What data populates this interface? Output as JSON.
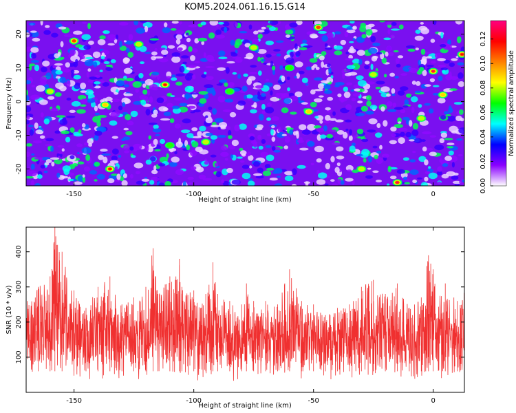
{
  "chart_data": [
    {
      "type": "heatmap",
      "title": "KOM5.2024.061.16.15.G14",
      "xlabel": "Height of straight line (km)",
      "ylabel": "Frequency (Hz)",
      "xlim": [
        -170,
        13
      ],
      "ylim": [
        -25,
        24
      ],
      "x_ticks": [
        -150,
        -100,
        -50,
        0
      ],
      "x_tick_labels": [
        "-150",
        "-100",
        "-50",
        "0"
      ],
      "y_ticks": [
        -20,
        -10,
        0,
        10,
        20
      ],
      "y_tick_labels": [
        "-20",
        "-10",
        "0",
        "10",
        "20"
      ],
      "colorbar": {
        "label": "Normalized spectral amplitude",
        "range": [
          0,
          0.135
        ],
        "ticks": [
          0.0,
          0.02,
          0.04,
          0.06,
          0.08,
          0.1,
          0.12
        ],
        "tick_labels": [
          "0.00",
          "0.02",
          "0.04",
          "0.06",
          "0.08",
          "0.10",
          "0.12"
        ],
        "colormap": [
          "#ffffff",
          "#8a00ff",
          "#0000ff",
          "#00ffff",
          "#00ff00",
          "#ffff00",
          "#ff8000",
          "#ff0000",
          "#ff0080"
        ]
      },
      "peaks": [
        {
          "x": -135,
          "y": -20,
          "value": 0.12
        },
        {
          "x": -15,
          "y": -24,
          "value": 0.13
        },
        {
          "x": 0,
          "y": 9,
          "value": 0.13
        },
        {
          "x": -112,
          "y": 5,
          "value": 0.12
        },
        {
          "x": -48,
          "y": 22,
          "value": 0.11
        },
        {
          "x": -150,
          "y": 18,
          "value": 0.11
        },
        {
          "x": 12,
          "y": 14,
          "value": 0.12
        },
        {
          "x": -137,
          "y": -1,
          "value": 0.09
        },
        {
          "x": -52,
          "y": -3,
          "value": 0.09
        },
        {
          "x": -95,
          "y": -12,
          "value": 0.08
        },
        {
          "x": -75,
          "y": 16,
          "value": 0.08
        },
        {
          "x": 4,
          "y": 2,
          "value": 0.09
        },
        {
          "x": -25,
          "y": 8,
          "value": 0.08
        },
        {
          "x": -160,
          "y": 3,
          "value": 0.08
        },
        {
          "x": -123,
          "y": 17,
          "value": 0.08
        },
        {
          "x": -85,
          "y": 3,
          "value": 0.07
        },
        {
          "x": -30,
          "y": -20,
          "value": 0.08
        },
        {
          "x": -5,
          "y": -5,
          "value": 0.08
        },
        {
          "x": -110,
          "y": -13,
          "value": 0.07
        },
        {
          "x": -60,
          "y": 10,
          "value": 0.07
        }
      ]
    },
    {
      "type": "line",
      "xlabel": "Height of straight line (km)",
      "ylabel": "SNR (10 * v/v)",
      "xlim": [
        -170,
        13
      ],
      "ylim": [
        0,
        470
      ],
      "x_ticks": [
        -150,
        -100,
        -50,
        0
      ],
      "x_tick_labels": [
        "-150",
        "-100",
        "-50",
        "0"
      ],
      "y_ticks": [
        100,
        200,
        300,
        400
      ],
      "y_tick_labels": [
        "100",
        "200",
        "300",
        "400"
      ],
      "color": "#f03030",
      "series": [
        {
          "x": [
            -170,
            -165,
            -160,
            -158,
            -155,
            -150,
            -145,
            -140,
            -135,
            -130,
            -125,
            -120,
            -117,
            -115,
            -110,
            -106,
            -105,
            -100,
            -95,
            -92,
            -90,
            -85,
            -80,
            -78,
            -75,
            -70,
            -65,
            -62,
            -60,
            -55,
            -50,
            -45,
            -40,
            -35,
            -30,
            -25,
            -20,
            -15,
            -10,
            -5,
            -2,
            0,
            5,
            10,
            13
          ],
          "y": [
            260,
            300,
            330,
            470,
            400,
            290,
            240,
            300,
            330,
            250,
            270,
            300,
            410,
            280,
            330,
            380,
            300,
            290,
            280,
            370,
            280,
            260,
            250,
            310,
            260,
            260,
            250,
            310,
            350,
            260,
            250,
            220,
            240,
            250,
            300,
            320,
            280,
            310,
            240,
            270,
            390,
            350,
            310,
            260,
            330
          ]
        }
      ]
    }
  ]
}
